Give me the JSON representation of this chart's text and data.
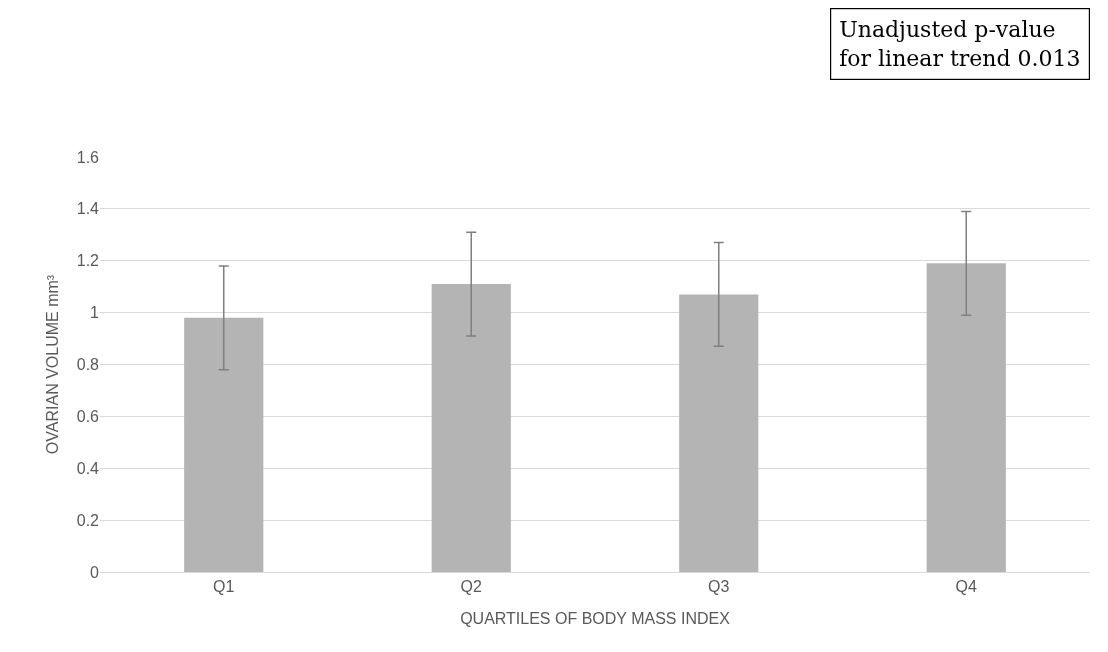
{
  "chart_data": {
    "type": "bar",
    "xlabel": "QUARTILES OF BODY MASS INDEX",
    "ylabel": "OVARIAN VOLUME mm³",
    "categories": [
      "Q1",
      "Q2",
      "Q3",
      "Q4"
    ],
    "values": [
      0.98,
      1.11,
      1.07,
      1.19
    ],
    "errors": [
      0.2,
      0.2,
      0.2,
      0.2
    ],
    "color": "#b4b4b4",
    "ylim": [
      0,
      1.6
    ],
    "yticks": [
      0,
      {
        "value": 0.2,
        "label": "0.2"
      },
      {
        "value": 0.4,
        "label": "0.4"
      },
      {
        "value": 0.6,
        "label": "0.6"
      },
      {
        "value": 0.8,
        "label": "0.8"
      },
      1,
      {
        "value": 1.2,
        "label": "1.2"
      },
      {
        "value": 1.4,
        "label": "1.4"
      },
      {
        "value": 1.6,
        "label": "1.6"
      }
    ],
    "grid": "y",
    "annotations": [
      "Unadjusted p-value\nfor linear trend 0.013"
    ]
  }
}
